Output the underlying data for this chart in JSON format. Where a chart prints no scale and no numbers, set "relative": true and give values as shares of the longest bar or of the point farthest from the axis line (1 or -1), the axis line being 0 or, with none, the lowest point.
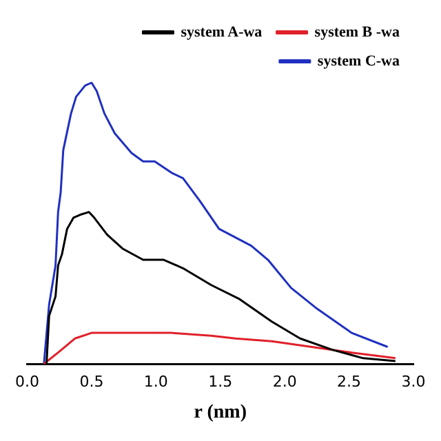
{
  "chart_data": {
    "type": "line",
    "xlabel": "r (nm)",
    "xlim": [
      0,
      3
    ],
    "xticks": [
      {
        "value": 0,
        "label": "0.0"
      },
      {
        "value": 0.5,
        "label": "0.5"
      },
      {
        "value": 1,
        "label": "1.0"
      },
      {
        "value": 1.5,
        "label": "1.5"
      },
      {
        "value": 2,
        "label": "2.0"
      },
      {
        "value": 2.5,
        "label": "2.5"
      },
      {
        "value": 3,
        "label": "3.0"
      }
    ],
    "relative": true,
    "grid": false,
    "legend": "top right",
    "marker": "none",
    "line_style": "solid",
    "series": [
      {
        "name": "system A-wa",
        "color": "#000000",
        "x": [
          0.15,
          0.17,
          0.22,
          0.24,
          0.27,
          0.31,
          0.36,
          0.41,
          0.48,
          0.52,
          0.62,
          0.74,
          0.9,
          1.06,
          1.21,
          1.43,
          1.65,
          1.9,
          2.12,
          2.37,
          2.61,
          2.86
        ],
        "values": [
          0,
          0.17,
          0.24,
          0.35,
          0.39,
          0.48,
          0.52,
          0.53,
          0.54,
          0.52,
          0.46,
          0.41,
          0.37,
          0.37,
          0.34,
          0.28,
          0.23,
          0.15,
          0.09,
          0.05,
          0.02,
          0.01
        ]
      },
      {
        "name": "system B -wa",
        "color": "#e0202a",
        "x": [
          0.13,
          0.24,
          0.37,
          0.5,
          0.65,
          0.81,
          0.97,
          1.12,
          1.43,
          1.62,
          1.9,
          2.21,
          2.52,
          2.86
        ],
        "values": [
          0,
          0.04,
          0.09,
          0.11,
          0.11,
          0.11,
          0.11,
          0.11,
          0.1,
          0.09,
          0.08,
          0.06,
          0.04,
          0.02
        ]
      },
      {
        "name": "system C-wa",
        "color": "#2030c0",
        "x": [
          0.13,
          0.17,
          0.22,
          0.24,
          0.26,
          0.28,
          0.34,
          0.38,
          0.45,
          0.5,
          0.54,
          0.6,
          0.68,
          0.81,
          0.9,
          0.99,
          1.12,
          1.21,
          1.34,
          1.4,
          1.49,
          1.74,
          1.87,
          2.05,
          2.24,
          2.52,
          2.8
        ],
        "values": [
          0,
          0.21,
          0.35,
          0.54,
          0.61,
          0.76,
          0.89,
          0.95,
          0.99,
          1,
          0.97,
          0.89,
          0.82,
          0.75,
          0.72,
          0.72,
          0.68,
          0.66,
          0.58,
          0.54,
          0.48,
          0.42,
          0.37,
          0.27,
          0.2,
          0.11,
          0.06
        ]
      }
    ]
  }
}
